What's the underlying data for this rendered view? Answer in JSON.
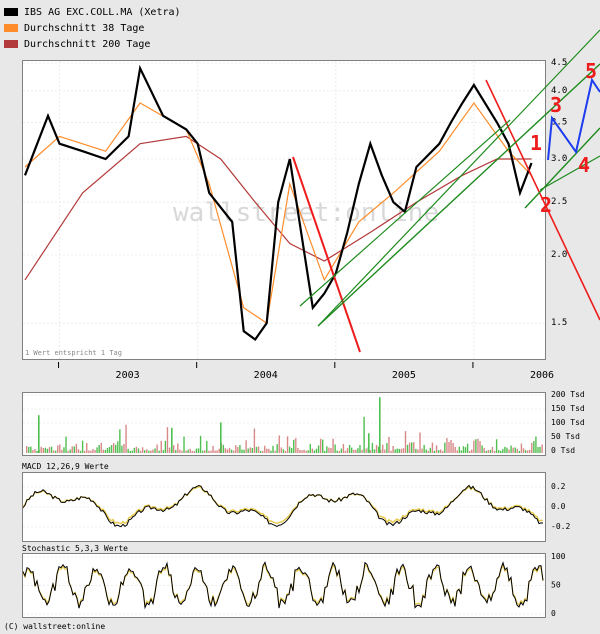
{
  "legend": [
    {
      "label": "IBS AG EXC.COLL.MA (Xetra)",
      "color": "#000000"
    },
    {
      "label": "Durchschnitt 38 Tage",
      "color": "#ff8c2a"
    },
    {
      "label": "Durchschnitt 200 Tage",
      "color": "#b33a3a"
    }
  ],
  "watermark": "wallstreet:online",
  "note": "1 Wert entspricht 1 Tag",
  "copyright": "(C) wallstreet:online",
  "chart_data": [
    {
      "type": "line",
      "title": "IBS AG EXC.COLL.MA (Xetra)",
      "x_ticks": [
        "2003",
        "2004",
        "2005",
        "2006"
      ],
      "y_ticks": [
        "4.5",
        "4.0",
        "3.5",
        "3.0",
        "2.5",
        "2.0",
        "1.5"
      ],
      "ylim": [
        1.3,
        4.5
      ],
      "y_scale": "log",
      "series": [
        {
          "name": "IBS AG EXC.COLL.MA (Xetra)",
          "color": "#000000",
          "x": [
            "2002-10",
            "2002-12",
            "2003-01",
            "2003-03",
            "2003-05",
            "2003-07",
            "2003-08",
            "2003-10",
            "2003-12",
            "2004-01",
            "2004-02",
            "2004-04",
            "2004-05",
            "2004-06",
            "2004-07",
            "2004-08",
            "2004-09",
            "2004-11",
            "2004-12",
            "2005-01",
            "2005-02",
            "2005-03",
            "2005-04",
            "2005-05",
            "2005-06",
            "2005-07",
            "2005-08",
            "2005-10",
            "2005-11",
            "2005-12",
            "2006-01",
            "2006-03",
            "2006-04",
            "2006-05",
            "2006-06"
          ],
          "values": [
            2.8,
            3.6,
            3.2,
            3.1,
            3.0,
            3.3,
            4.4,
            3.6,
            3.4,
            3.2,
            2.6,
            2.3,
            1.45,
            1.4,
            1.5,
            2.5,
            3.0,
            1.6,
            1.7,
            1.85,
            2.2,
            2.7,
            3.2,
            2.8,
            2.5,
            2.4,
            2.9,
            3.2,
            3.5,
            3.8,
            4.1,
            3.5,
            3.2,
            2.6,
            2.95
          ]
        },
        {
          "name": "Durchschnitt 38 Tage",
          "color": "#ff8c2a",
          "x": [
            "2002-10",
            "2003-01",
            "2003-05",
            "2003-08",
            "2003-12",
            "2004-02",
            "2004-05",
            "2004-07",
            "2004-09",
            "2004-12",
            "2005-03",
            "2005-06",
            "2005-10",
            "2006-01",
            "2006-04",
            "2006-06"
          ],
          "values": [
            2.9,
            3.3,
            3.1,
            3.8,
            3.4,
            2.7,
            1.6,
            1.5,
            2.7,
            1.8,
            2.3,
            2.6,
            3.1,
            3.8,
            3.1,
            2.8
          ]
        },
        {
          "name": "Durchschnitt 200 Tage",
          "color": "#b33a3a",
          "x": [
            "2002-10",
            "2003-03",
            "2003-08",
            "2003-12",
            "2004-03",
            "2004-06",
            "2004-09",
            "2004-12",
            "2005-04",
            "2005-08",
            "2005-12",
            "2006-03",
            "2006-06"
          ],
          "values": [
            1.8,
            2.6,
            3.2,
            3.3,
            3.0,
            2.5,
            2.1,
            1.95,
            2.2,
            2.5,
            2.8,
            3.0,
            3.0
          ]
        }
      ],
      "annotations": [
        "1",
        "2",
        "3",
        "4",
        "5"
      ]
    },
    {
      "type": "bar",
      "title": "",
      "y_ticks": [
        "200 Tsd",
        "150 Tsd",
        "100 Tsd",
        "50 Tsd",
        "0 Tsd"
      ],
      "ylim": [
        0,
        200
      ]
    },
    {
      "type": "line",
      "title": "MACD 12,26,9 Werte",
      "y_ticks": [
        "0.2",
        "0.0",
        "-0.2"
      ],
      "ylim": [
        -0.3,
        0.3
      ]
    },
    {
      "type": "line",
      "title": "Stochastic 5,3,3 Werte",
      "y_ticks": [
        "100",
        "50",
        "0"
      ],
      "ylim": [
        0,
        100
      ]
    }
  ]
}
